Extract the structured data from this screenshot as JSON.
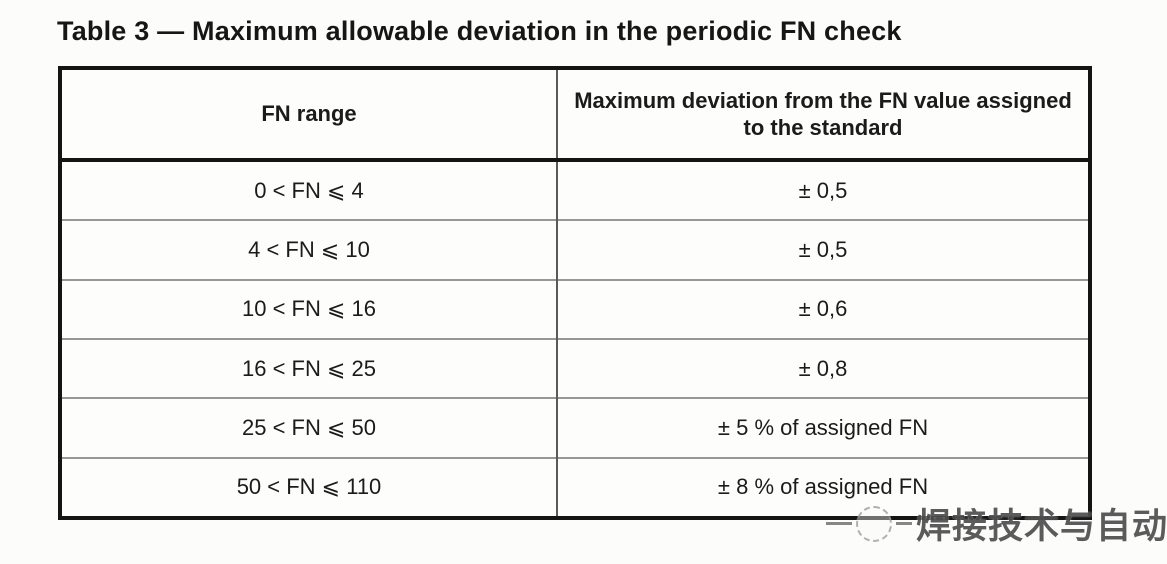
{
  "title": "Table 3 — Maximum allowable deviation in the periodic FN check",
  "table": {
    "header": {
      "col1": "FN range",
      "col2": "Maximum deviation from the FN value assigned to the standard"
    },
    "rows": [
      {
        "range": "0 < FN ⩽ 4",
        "deviation": "± 0,5"
      },
      {
        "range": "4 < FN ⩽ 10",
        "deviation": "± 0,5"
      },
      {
        "range": "10 < FN ⩽ 16",
        "deviation": "± 0,6"
      },
      {
        "range": "16 < FN ⩽ 25",
        "deviation": "± 0,8"
      },
      {
        "range": "25 < FN ⩽ 50",
        "deviation": "± 5 % of assigned FN"
      },
      {
        "range": "50 < FN ⩽ 110",
        "deviation": "± 8 % of assigned FN"
      }
    ]
  },
  "watermark": {
    "logo": "dashed-circle-logo",
    "text": "焊接技术与自动化"
  },
  "chart_data": {
    "type": "table",
    "title": "Table 3 — Maximum allowable deviation in the periodic FN check",
    "columns": [
      "FN range",
      "Maximum deviation from the FN value assigned to the standard"
    ],
    "rows": [
      [
        "0 < FN ⩽ 4",
        "± 0,5"
      ],
      [
        "4 < FN ⩽ 10",
        "± 0,5"
      ],
      [
        "10 < FN ⩽ 16",
        "± 0,6"
      ],
      [
        "16 < FN ⩽ 25",
        "± 0,8"
      ],
      [
        "25 < FN ⩽ 50",
        "± 5 % of assigned FN"
      ],
      [
        "50 < FN ⩽ 110",
        "± 8 % of assigned FN"
      ]
    ]
  },
  "colors": {
    "page_background": "#fcfcfb",
    "border_heavy": "#141414",
    "border_light": "#979797",
    "text": "#1b1b1b",
    "watermark": "rgba(55,55,55,0.82)"
  }
}
